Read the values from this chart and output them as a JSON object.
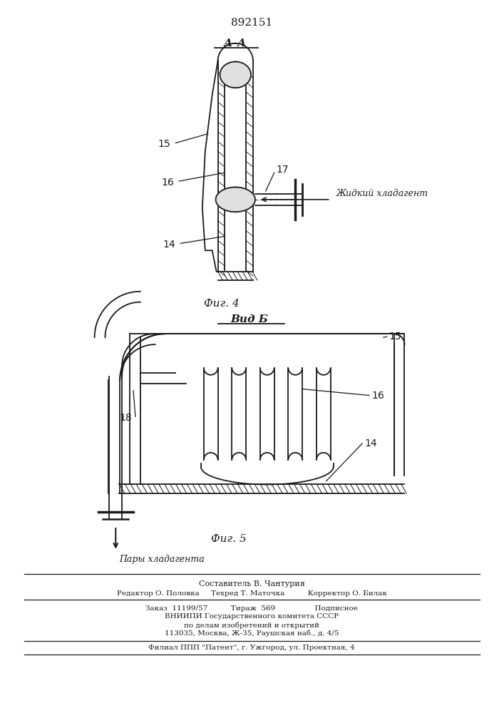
{
  "patent_number": "892151",
  "bg_color": "#ffffff",
  "lc": "#1a1a1a",
  "fig4_label": "А–А",
  "fig4_caption": "Фиг. 4",
  "fig5_label": "Вид Б",
  "fig5_caption": "Фиг. 5",
  "liquid_label": "Жидкий хладагент",
  "vapor_label": "Пары хладагента",
  "footer_lines": [
    "Составитель В. Чантурия",
    "Редактор О. Половка     Техред Т. Маточка          Корректор О. Билак",
    "Заказ  11199/57          Тираж  569                 Подписное",
    "ВНИИПИ Государственного комитета СССР",
    "по делам изобретений и открытий",
    "113035, Москва, Ж-35, Раушская наб., д. 4/5",
    "Филиал ППП \"Патент\", г. Ужгород, ул. Проектная, 4"
  ]
}
